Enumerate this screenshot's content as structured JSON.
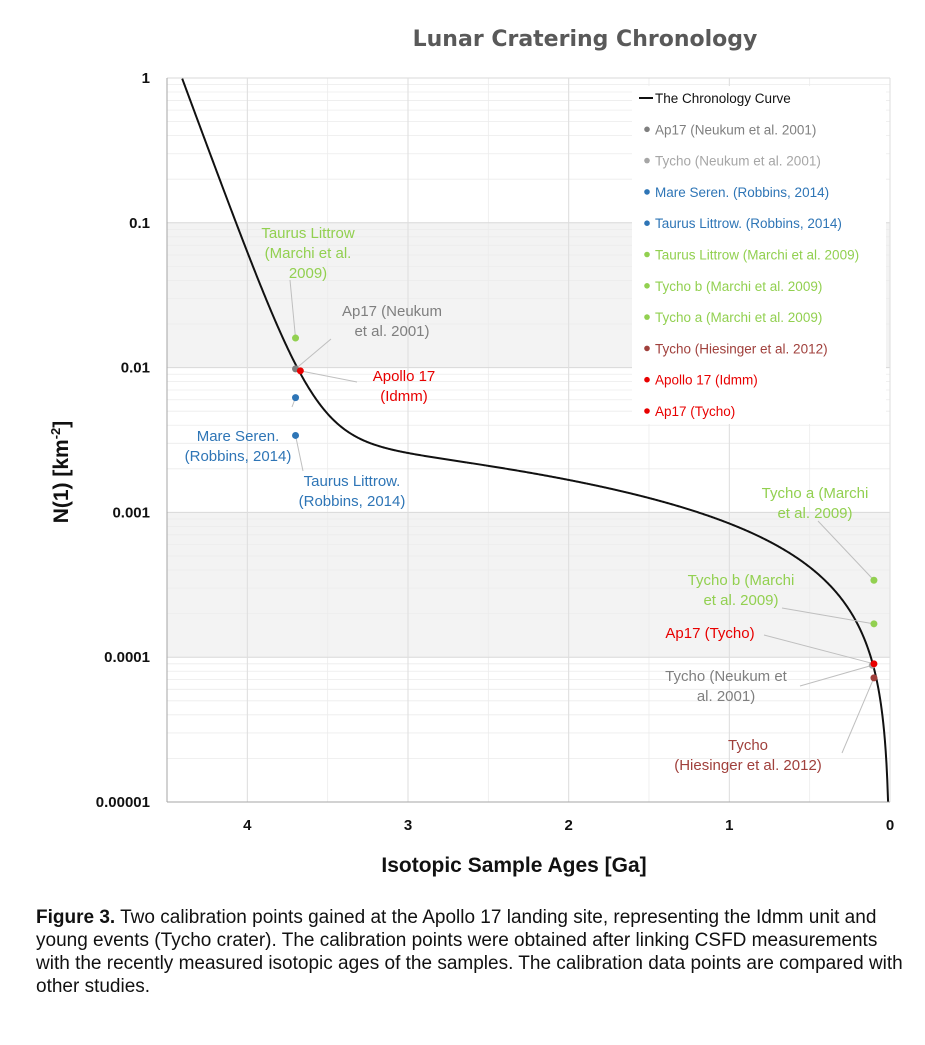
{
  "chart_data": {
    "type": "scatter",
    "title": "Lunar Cratering Chronology",
    "xlabel": "Isotopic Sample Ages [Ga]",
    "ylabel": "N(1) [km",
    "ylabel_sup": "-2",
    "ylabel_end": "]",
    "xlim": [
      4.5,
      0
    ],
    "ylim": [
      1e-05,
      1
    ],
    "yscale": "log",
    "x_ticks": [
      {
        "value": 4,
        "label": "4"
      },
      {
        "value": 3,
        "label": "3"
      },
      {
        "value": 2,
        "label": "2"
      },
      {
        "value": 1,
        "label": "1"
      },
      {
        "value": 0,
        "label": "0"
      }
    ],
    "y_ticks": [
      {
        "value": 1,
        "label": "1"
      },
      {
        "value": 0.1,
        "label": "0.1"
      },
      {
        "value": 0.01,
        "label": "0.01"
      },
      {
        "value": 0.001,
        "label": "0.001"
      },
      {
        "value": 0.0001,
        "label": "0.0001"
      },
      {
        "value": 1e-05,
        "label": "0.00001"
      }
    ],
    "grid": true,
    "legend_position": "top-right",
    "curve": {
      "name": "The Chronology Curve",
      "color": "#111111"
    },
    "series": [
      {
        "name": "Ap17 (Neukum et al. 2001)",
        "color": "#7f7f7f",
        "x": 3.7,
        "y": 0.0098
      },
      {
        "name": "Tycho (Neukum et al. 2001)",
        "color": "#a6a6a6",
        "x": 0.11,
        "y": 8.8e-05
      },
      {
        "name": "Mare Seren. (Robbins, 2014)",
        "color": "#2e75b6",
        "x": 3.7,
        "y": 0.0062
      },
      {
        "name": "Taurus Littrow. (Robbins, 2014)",
        "color": "#2e75b6",
        "x": 3.7,
        "y": 0.0034
      },
      {
        "name": "Taurus Littrow (Marchi et al. 2009)",
        "color": "#92d050",
        "x": 3.7,
        "y": 0.016
      },
      {
        "name": "Tycho b (Marchi et al. 2009)",
        "color": "#92d050",
        "x": 0.1,
        "y": 0.00017
      },
      {
        "name": "Tycho a (Marchi et al. 2009)",
        "color": "#92d050",
        "x": 0.1,
        "y": 0.00034
      },
      {
        "name": "Tycho (Hiesinger et al. 2012)",
        "color": "#a0403c",
        "x": 0.1,
        "y": 7.2e-05
      },
      {
        "name": "Apollo 17  (Idmm)",
        "color": "#e80000",
        "x": 3.67,
        "y": 0.0095
      },
      {
        "name": "Ap17 (Tycho)",
        "color": "#e80000",
        "x": 0.1,
        "y": 9e-05
      }
    ],
    "annotations": [
      {
        "lines": [
          "Taurus Littrow",
          "(Marchi et al.",
          "2009)"
        ],
        "color": "#92d050",
        "ax": 308,
        "ay": 233
      },
      {
        "lines": [
          "Ap17 (Neukum",
          "et al. 2001)"
        ],
        "color": "#7f7f7f",
        "ax": 392,
        "ay": 311
      },
      {
        "lines": [
          "Apollo 17",
          "(Idmm)"
        ],
        "color": "#e80000",
        "ax": 404,
        "ay": 376
      },
      {
        "lines": [
          "Mare Seren.",
          "(Robbins, 2014)"
        ],
        "color": "#2e75b6",
        "ax": 238,
        "ay": 436
      },
      {
        "lines": [
          "Taurus Littrow.",
          "(Robbins, 2014)"
        ],
        "color": "#2e75b6",
        "ax": 352,
        "ay": 481
      },
      {
        "lines": [
          "Tycho a (Marchi",
          "et al. 2009)"
        ],
        "color": "#92d050",
        "ax": 815,
        "ay": 493
      },
      {
        "lines": [
          "Tycho b (Marchi",
          "et al. 2009)"
        ],
        "color": "#92d050",
        "ax": 741,
        "ay": 580
      },
      {
        "lines": [
          "Ap17 (Tycho)"
        ],
        "color": "#e80000",
        "ax": 710,
        "ay": 633
      },
      {
        "lines": [
          "Tycho (Neukum et",
          "al. 2001)"
        ],
        "color": "#7f7f7f",
        "ax": 726,
        "ay": 676
      },
      {
        "lines": [
          "Tycho",
          "(Hiesinger et al. 2012)"
        ],
        "color": "#a0403c",
        "ax": 748,
        "ay": 745
      }
    ]
  },
  "caption": {
    "label": "Figure 3.",
    "text": " Two calibration points gained at the Apollo 17 landing site, representing the Idmm unit and young events (Tycho crater). The calibration points were obtained after linking CSFD measurements with the recently measured isotopic ages of the samples. The calibration data points are compared with other studies."
  }
}
